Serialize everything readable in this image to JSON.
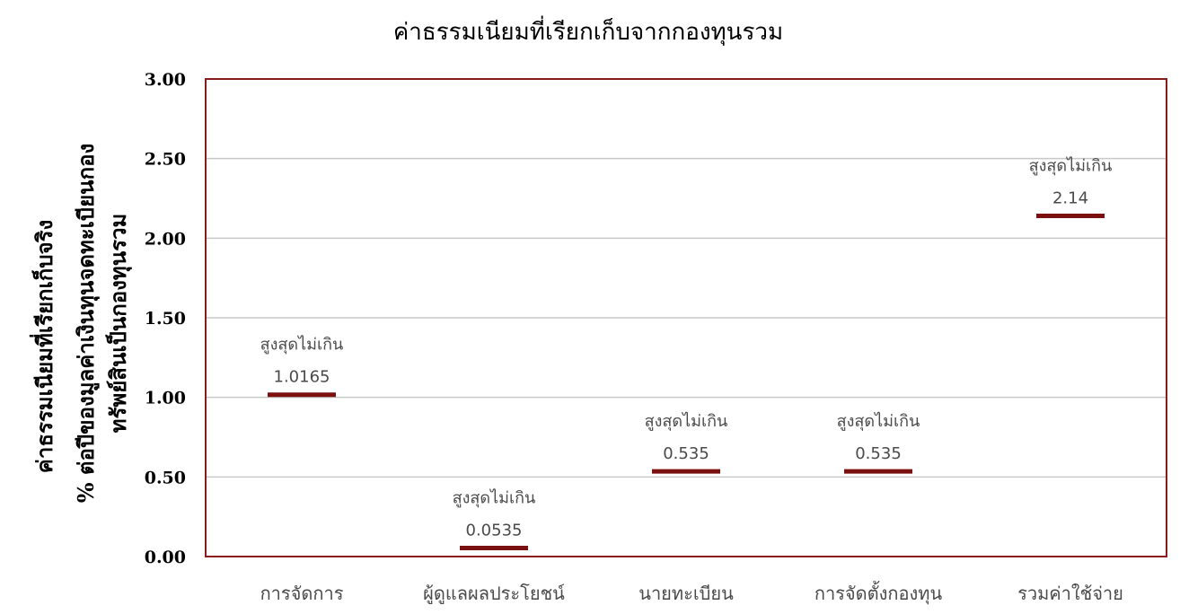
{
  "chart_data": {
    "type": "scatter",
    "title": "ค่าธรรมเนียมที่เรียกเก็บจากกองทุนรวม",
    "ylabel_lines": [
      "ค่าธรรมเนียมที่เรียกเก็บจริง",
      "% ต่อปีของมูลค่าเงินทุนจดทะเบียนกอง",
      "ทรัพย์สินเป็นกองทุนรวม"
    ],
    "xlabel": "",
    "ylim": [
      0,
      3
    ],
    "yticks": [
      "0.00",
      "0.50",
      "1.00",
      "1.50",
      "2.00",
      "2.50",
      "3.00"
    ],
    "grid": true,
    "categories": [
      "การจัดการ",
      "ผู้ดูแลผลประโยชน์",
      "นายทะเบียน",
      "การจัดตั้งกองทุน",
      "รวมค่าใช้จ่าย"
    ],
    "values": [
      1.0165,
      0.0535,
      0.535,
      0.535,
      2.14
    ],
    "data_labels": [
      {
        "prefix": "สูงสุดไม่เกิน",
        "value": "1.0165"
      },
      {
        "prefix": "สูงสุดไม่เกิน",
        "value": "0.0535"
      },
      {
        "prefix": "สูงสุดไม่เกิน",
        "value": "0.535"
      },
      {
        "prefix": "สูงสุดไม่เกิน",
        "value": "0.535"
      },
      {
        "prefix": "สูงสุดไม่เกิน",
        "value": "2.14"
      }
    ],
    "marker": "horizontal-dash",
    "colors": {
      "marker": "#7a1010",
      "frame": "#8b1a1a",
      "grid": "#c8c8c8"
    }
  }
}
